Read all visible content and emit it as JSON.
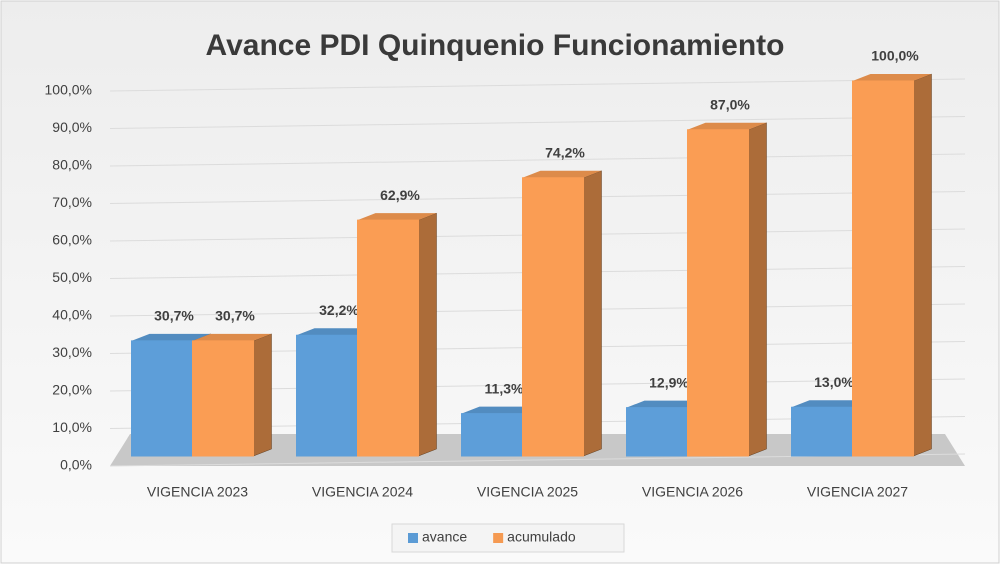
{
  "chart_data": {
    "type": "bar3d",
    "title": "Avance PDI Quinquenio Funcionamiento",
    "categories": [
      "VIGENCIA 2023",
      "VIGENCIA 2024",
      "VIGENCIA 2025",
      "VIGENCIA 2026",
      "VIGENCIA 2027"
    ],
    "series": [
      {
        "name": "avance",
        "color": "#5b9bd5",
        "values": [
          30.7,
          32.2,
          11.3,
          12.9,
          13.0
        ],
        "value_labels": [
          "30,7%",
          "32,2%",
          "11,3%",
          "12,9%",
          "13,0%"
        ]
      },
      {
        "name": "acumulado",
        "color": "#f59a52",
        "values": [
          30.7,
          62.9,
          74.2,
          87.0,
          100.0
        ],
        "value_labels": [
          "30,7%",
          "62,9%",
          "74,2%",
          "87,0%",
          "100,0%"
        ]
      }
    ],
    "ylim": [
      0,
      100
    ],
    "yticks": [
      {
        "value": 0,
        "label": "0,0%"
      },
      {
        "value": 10,
        "label": "10,0%"
      },
      {
        "value": 20,
        "label": "20,0%"
      },
      {
        "value": 30,
        "label": "30,0%"
      },
      {
        "value": 40,
        "label": "40,0%"
      },
      {
        "value": 50,
        "label": "50,0%"
      },
      {
        "value": 60,
        "label": "60,0%"
      },
      {
        "value": 70,
        "label": "70,0%"
      },
      {
        "value": 80,
        "label": "80,0%"
      },
      {
        "value": 90,
        "label": "90,0%"
      },
      {
        "value": 100,
        "label": "100,0%"
      }
    ],
    "grid": true,
    "legend": "bottom"
  }
}
